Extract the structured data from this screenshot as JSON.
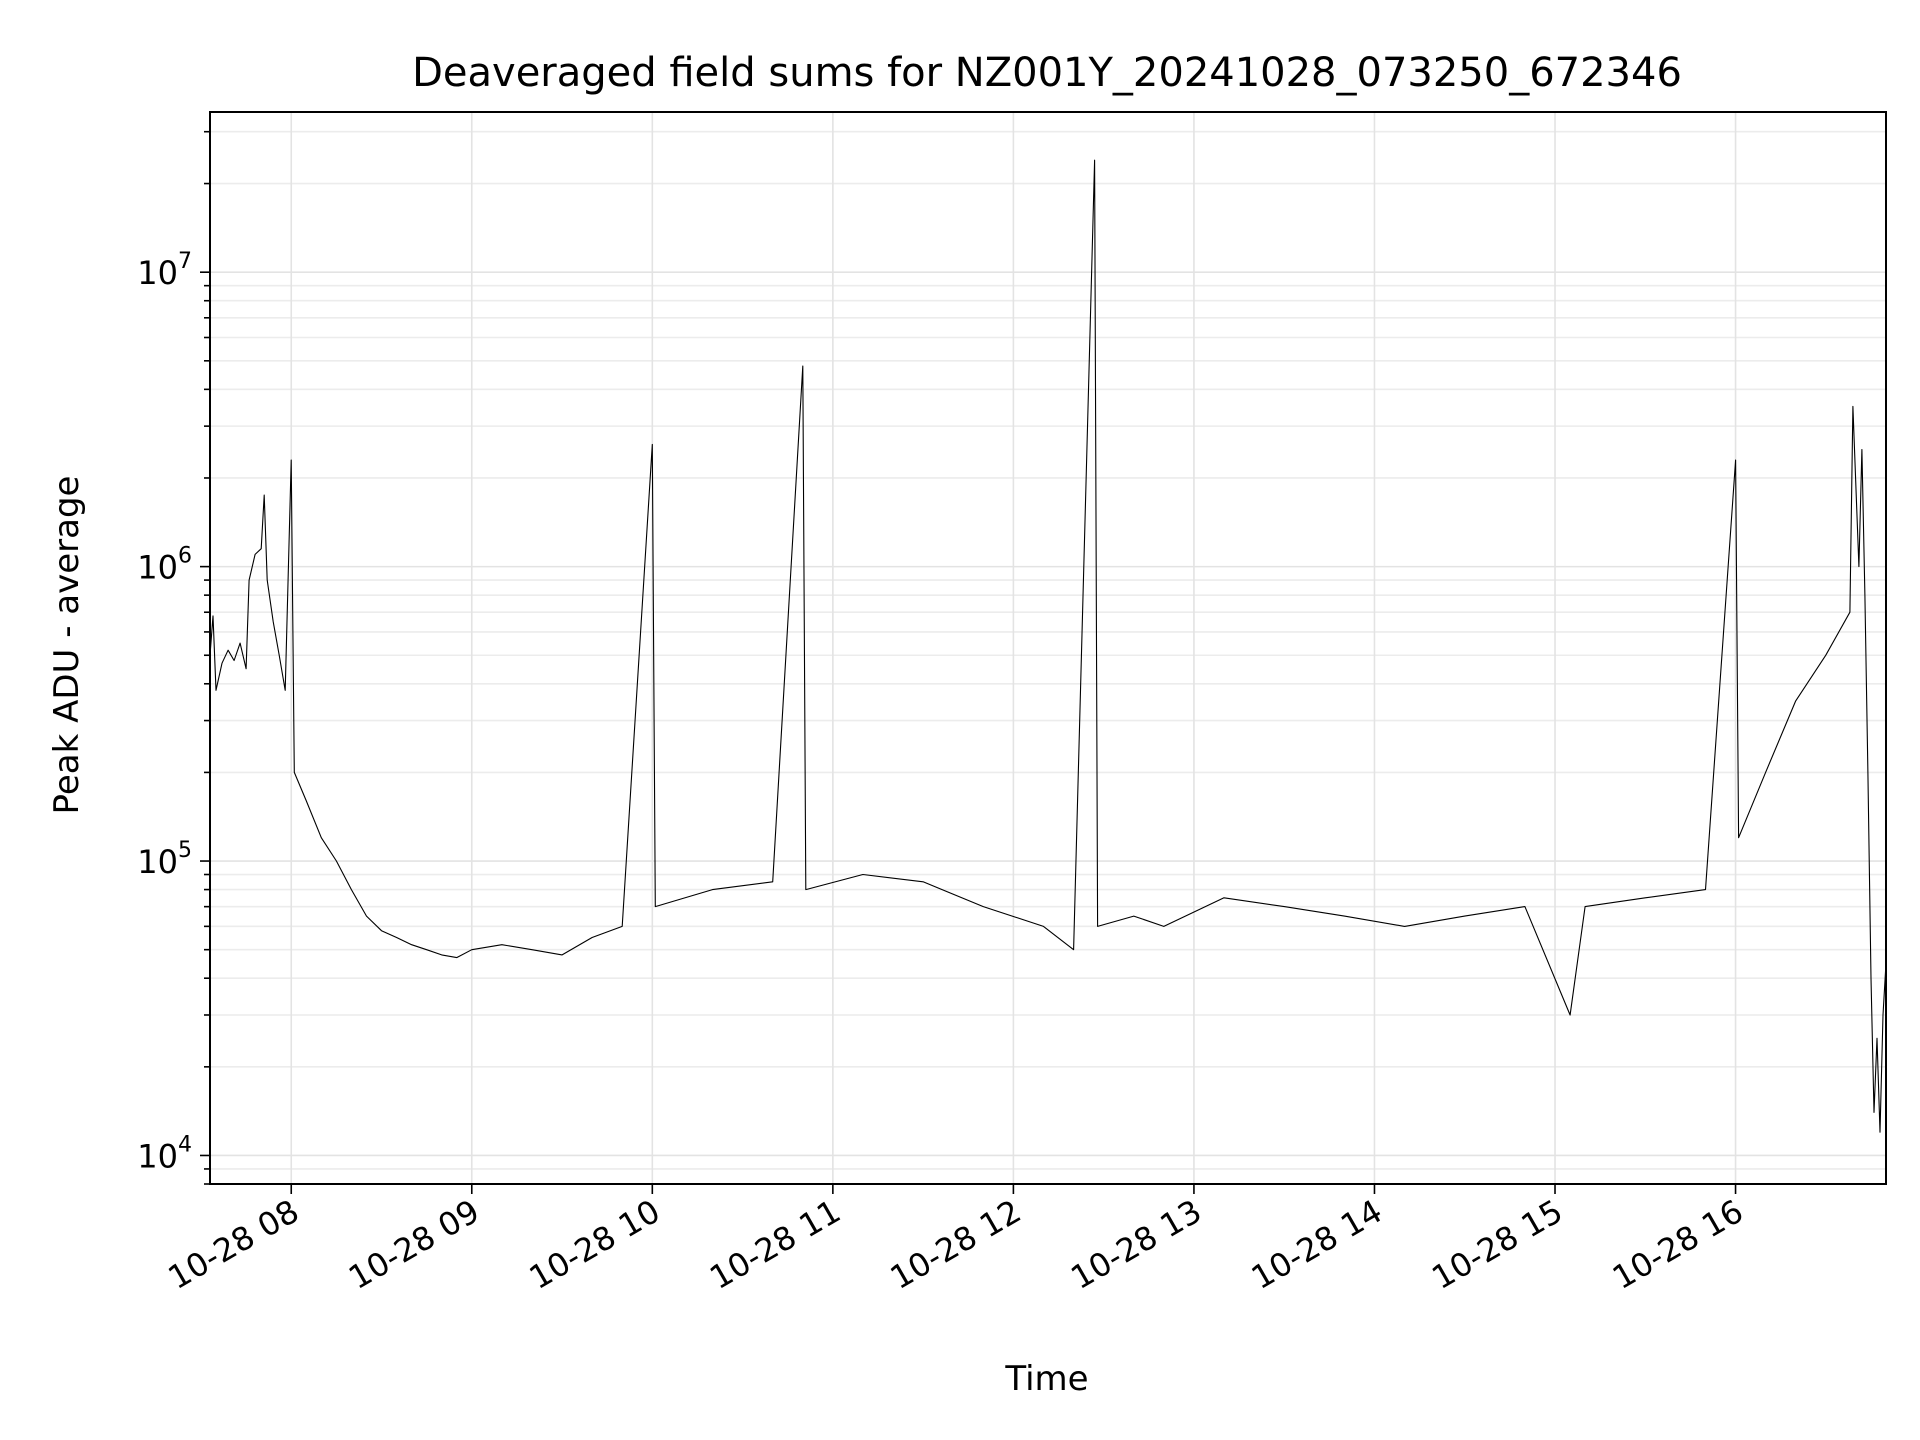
{
  "chart_data": {
    "type": "line",
    "title": "Deaveraged field sums for NZ001Y_20241028_073250_672346",
    "xlabel": "Time",
    "ylabel": "Peak ADU - average",
    "yscale": "log",
    "xlim": [
      "2024-10-28 07:33",
      "2024-10-28 16:50"
    ],
    "ylim": [
      8000,
      35000000
    ],
    "grid": true,
    "x_tick_labels": [
      "10-28 08",
      "10-28 09",
      "10-28 10",
      "10-28 11",
      "10-28 12",
      "10-28 13",
      "10-28 14",
      "10-28 15",
      "10-28 16"
    ],
    "x_tick_times": [
      "2024-10-28 08:00",
      "2024-10-28 09:00",
      "2024-10-28 10:00",
      "2024-10-28 11:00",
      "2024-10-28 12:00",
      "2024-10-28 13:00",
      "2024-10-28 14:00",
      "2024-10-28 15:00",
      "2024-10-28 16:00"
    ],
    "y_ticks": [
      {
        "value": 10000,
        "base": "10",
        "exp": "4"
      },
      {
        "value": 100000,
        "base": "10",
        "exp": "5"
      },
      {
        "value": 1000000,
        "base": "10",
        "exp": "6"
      },
      {
        "value": 10000000,
        "base": "10",
        "exp": "7"
      }
    ],
    "series": [
      {
        "color": "#000000",
        "points": [
          [
            "2024-10-28 07:33",
            500000
          ],
          [
            "2024-10-28 07:34",
            680000
          ],
          [
            "2024-10-28 07:35",
            380000
          ],
          [
            "2024-10-28 07:37",
            470000
          ],
          [
            "2024-10-28 07:39",
            520000
          ],
          [
            "2024-10-28 07:41",
            480000
          ],
          [
            "2024-10-28 07:43",
            550000
          ],
          [
            "2024-10-28 07:45",
            450000
          ],
          [
            "2024-10-28 07:46",
            900000
          ],
          [
            "2024-10-28 07:48",
            1100000
          ],
          [
            "2024-10-28 07:50",
            1150000
          ],
          [
            "2024-10-28 07:51",
            1750000
          ],
          [
            "2024-10-28 07:52",
            900000
          ],
          [
            "2024-10-28 07:54",
            650000
          ],
          [
            "2024-10-28 07:56",
            500000
          ],
          [
            "2024-10-28 07:58",
            380000
          ],
          [
            "2024-10-28 08:00",
            2300000
          ],
          [
            "2024-10-28 08:01",
            200000
          ],
          [
            "2024-10-28 08:05",
            160000
          ],
          [
            "2024-10-28 08:10",
            120000
          ],
          [
            "2024-10-28 08:15",
            100000
          ],
          [
            "2024-10-28 08:20",
            80000
          ],
          [
            "2024-10-28 08:25",
            65000
          ],
          [
            "2024-10-28 08:30",
            58000
          ],
          [
            "2024-10-28 08:35",
            55000
          ],
          [
            "2024-10-28 08:40",
            52000
          ],
          [
            "2024-10-28 08:45",
            50000
          ],
          [
            "2024-10-28 08:50",
            48000
          ],
          [
            "2024-10-28 08:55",
            47000
          ],
          [
            "2024-10-28 09:00",
            50000
          ],
          [
            "2024-10-28 09:10",
            52000
          ],
          [
            "2024-10-28 09:20",
            50000
          ],
          [
            "2024-10-28 09:30",
            48000
          ],
          [
            "2024-10-28 09:40",
            55000
          ],
          [
            "2024-10-28 09:50",
            60000
          ],
          [
            "2024-10-28 10:00",
            2600000
          ],
          [
            "2024-10-28 10:01",
            70000
          ],
          [
            "2024-10-28 10:20",
            80000
          ],
          [
            "2024-10-28 10:40",
            85000
          ],
          [
            "2024-10-28 10:50",
            4800000
          ],
          [
            "2024-10-28 10:51",
            80000
          ],
          [
            "2024-10-28 11:10",
            90000
          ],
          [
            "2024-10-28 11:30",
            85000
          ],
          [
            "2024-10-28 11:50",
            70000
          ],
          [
            "2024-10-28 12:10",
            60000
          ],
          [
            "2024-10-28 12:20",
            50000
          ],
          [
            "2024-10-28 12:27",
            24000000
          ],
          [
            "2024-10-28 12:28",
            60000
          ],
          [
            "2024-10-28 12:40",
            65000
          ],
          [
            "2024-10-28 12:50",
            60000
          ],
          [
            "2024-10-28 13:10",
            75000
          ],
          [
            "2024-10-28 13:30",
            70000
          ],
          [
            "2024-10-28 13:50",
            65000
          ],
          [
            "2024-10-28 14:10",
            60000
          ],
          [
            "2024-10-28 14:30",
            65000
          ],
          [
            "2024-10-28 14:50",
            70000
          ],
          [
            "2024-10-28 15:05",
            30000
          ],
          [
            "2024-10-28 15:10",
            70000
          ],
          [
            "2024-10-28 15:30",
            75000
          ],
          [
            "2024-10-28 15:50",
            80000
          ],
          [
            "2024-10-28 16:00",
            2300000
          ],
          [
            "2024-10-28 16:01",
            120000
          ],
          [
            "2024-10-28 16:10",
            200000
          ],
          [
            "2024-10-28 16:20",
            350000
          ],
          [
            "2024-10-28 16:30",
            500000
          ],
          [
            "2024-10-28 16:38",
            700000
          ],
          [
            "2024-10-28 16:39",
            3500000
          ],
          [
            "2024-10-28 16:41",
            1000000
          ],
          [
            "2024-10-28 16:42",
            2500000
          ],
          [
            "2024-10-28 16:43",
            800000
          ],
          [
            "2024-10-28 16:44",
            200000
          ],
          [
            "2024-10-28 16:45",
            40000
          ],
          [
            "2024-10-28 16:46",
            14000
          ],
          [
            "2024-10-28 16:47",
            25000
          ],
          [
            "2024-10-28 16:48",
            12000
          ],
          [
            "2024-10-28 16:49",
            30000
          ],
          [
            "2024-10-28 16:50",
            45000
          ]
        ]
      }
    ]
  }
}
